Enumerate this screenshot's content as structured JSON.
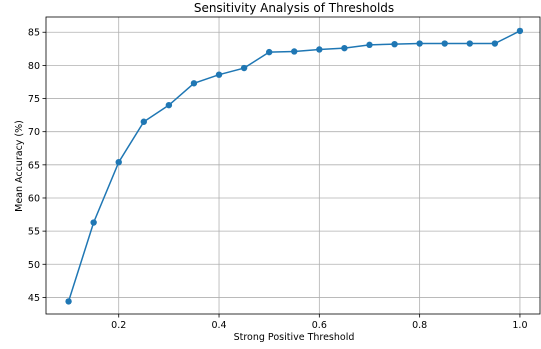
{
  "chart_data": {
    "type": "line",
    "title": "Sensitivity Analysis of Thresholds",
    "xlabel": "Strong Positive Threshold",
    "ylabel": "Mean Accuracy (%)",
    "xlim": [
      0.055,
      1.04
    ],
    "ylim": [
      42.5,
      87.3
    ],
    "xticks": [
      0.2,
      0.4,
      0.6,
      0.8,
      1.0
    ],
    "xtick_labels": [
      "0.2",
      "0.4",
      "0.6",
      "0.8",
      "1.0"
    ],
    "yticks": [
      45,
      50,
      55,
      60,
      65,
      70,
      75,
      80,
      85
    ],
    "ytick_labels": [
      "45",
      "50",
      "55",
      "60",
      "65",
      "70",
      "75",
      "80",
      "85"
    ],
    "grid": true,
    "color": "#1f77b4",
    "series": [
      {
        "x": [
          0.1,
          0.15,
          0.2,
          0.25,
          0.3,
          0.35,
          0.4,
          0.45,
          0.5,
          0.55,
          0.6,
          0.65,
          0.7,
          0.75,
          0.8,
          0.85,
          0.9,
          0.95,
          1.0
        ],
        "values": [
          44.4,
          56.3,
          65.4,
          71.5,
          74.0,
          77.3,
          78.6,
          79.6,
          82.0,
          82.1,
          82.4,
          82.6,
          83.1,
          83.2,
          83.3,
          83.3,
          83.3,
          83.3,
          85.2
        ]
      }
    ]
  }
}
